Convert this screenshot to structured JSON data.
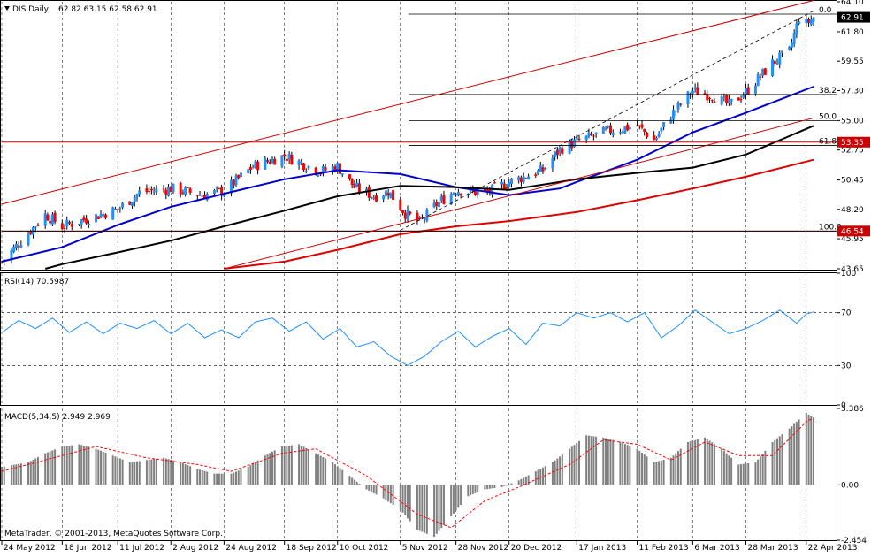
{
  "window": {
    "symbol_header": "DIS,Daily",
    "ohlc": "62.82 63.15 62.58 62.91",
    "copyright": "MetaTrader, © 2001-2013, MetaQuotes Software Corp.",
    "colors": {
      "background": "#ffffff",
      "grid": "#000000",
      "bull": "#1e90ff",
      "bear": "#ff0000",
      "ma_fast": "#0000cd",
      "ma_mid": "#000000",
      "ma_slow": "#dd0000",
      "rsi": "#1e90ff",
      "macd_hist": "#808080",
      "macd_signal": "#ff0000",
      "channel": "#cc0000"
    }
  },
  "chart_data": [
    {
      "type": "candlestick",
      "title": "DIS,Daily",
      "ohlc_label": "62.82 63.15 62.58 62.91",
      "ylim": [
        43.65,
        64.1
      ],
      "y_ticks": [
        "64.10",
        "61.80",
        "59.55",
        "57.30",
        "55.00",
        "52.75",
        "50.45",
        "48.20",
        "45.95",
        "43.65"
      ],
      "x_ticks": [
        "24 May 2012",
        "18 Jun 2012",
        "11 Jul 2012",
        "2 Aug 2012",
        "24 Aug 2012",
        "18 Sep 2012",
        "10 Oct 2012",
        "5 Nov 2012",
        "28 Nov 2012",
        "20 Dec 2012",
        "17 Jan 2013",
        "11 Feb 2013",
        "6 Mar 2013",
        "28 Mar 2013",
        "22 Apr 2013"
      ],
      "price_anchors": [
        [
          "24 May 2012",
          44.2
        ],
        [
          "11 Jun 2012",
          47.8
        ],
        [
          "18 Jun 2012",
          46.9
        ],
        [
          "11 Jul 2012",
          48.2
        ],
        [
          "20 Jul 2012",
          49.5
        ],
        [
          "2 Aug 2012",
          49.8
        ],
        [
          "15 Aug 2012",
          49.3
        ],
        [
          "24 Aug 2012",
          49.6
        ],
        [
          "5 Sep 2012",
          51.5
        ],
        [
          "18 Sep 2012",
          52.3
        ],
        [
          "3 Oct 2012",
          51.1
        ],
        [
          "10 Oct 2012",
          51.5
        ],
        [
          "17 Oct 2012",
          49.9
        ],
        [
          "25 Oct 2012",
          49.2
        ],
        [
          "31 Oct 2012",
          49.6
        ],
        [
          "7 Nov 2012",
          47.9
        ],
        [
          "13 Nov 2012",
          47.2
        ],
        [
          "20 Nov 2012",
          48.6
        ],
        [
          "28 Nov 2012",
          49.7
        ],
        [
          "10 Dec 2012",
          49.4
        ],
        [
          "20 Dec 2012",
          50.3
        ],
        [
          "3 Jan 2013",
          51.2
        ],
        [
          "10 Jan 2013",
          52.8
        ],
        [
          "17 Jan 2013",
          53.4
        ],
        [
          "30 Jan 2013",
          54.2
        ],
        [
          "11 Feb 2013",
          54.6
        ],
        [
          "18 Feb 2013",
          53.5
        ],
        [
          "25 Feb 2013",
          55.4
        ],
        [
          "6 Mar 2013",
          57.3
        ],
        [
          "14 Mar 2013",
          56.9
        ],
        [
          "21 Mar 2013",
          56.2
        ],
        [
          "28 Mar 2013",
          57.2
        ],
        [
          "8 Apr 2013",
          59.4
        ],
        [
          "15 Apr 2013",
          60.3
        ],
        [
          "19 Apr 2013",
          62.9
        ],
        [
          "22 Apr 2013",
          62.4
        ],
        [
          "25 Apr 2013",
          62.9
        ]
      ],
      "moving_averages": [
        {
          "color": "#0000cd",
          "points": [
            [
              "24 May 2012",
              44.2
            ],
            [
              "18 Jun 2012",
              45.3
            ],
            [
              "11 Jul 2012",
              47.0
            ],
            [
              "2 Aug 2012",
              48.4
            ],
            [
              "24 Aug 2012",
              49.4
            ],
            [
              "18 Sep 2012",
              50.5
            ],
            [
              "10 Oct 2012",
              51.2
            ],
            [
              "5 Nov 2012",
              50.9
            ],
            [
              "28 Nov 2012",
              49.9
            ],
            [
              "20 Dec 2012",
              49.3
            ],
            [
              "10 Jan 2013",
              49.8
            ],
            [
              "17 Jan 2013",
              50.3
            ],
            [
              "11 Feb 2013",
              52.0
            ],
            [
              "6 Mar 2013",
              54.1
            ],
            [
              "28 Mar 2013",
              55.6
            ],
            [
              "25 Apr 2013",
              57.6
            ]
          ]
        },
        {
          "color": "#000000",
          "points": [
            [
              "11 Jun 2012",
              43.65
            ],
            [
              "18 Jun 2012",
              44.0
            ],
            [
              "11 Jul 2012",
              44.9
            ],
            [
              "2 Aug 2012",
              45.8
            ],
            [
              "24 Aug 2012",
              46.9
            ],
            [
              "18 Sep 2012",
              48.1
            ],
            [
              "10 Oct 2012",
              49.2
            ],
            [
              "5 Nov 2012",
              50.0
            ],
            [
              "28 Nov 2012",
              49.9
            ],
            [
              "20 Dec 2012",
              49.7
            ],
            [
              "17 Jan 2013",
              50.5
            ],
            [
              "11 Feb 2013",
              51.0
            ],
            [
              "6 Mar 2013",
              51.4
            ],
            [
              "28 Mar 2013",
              52.4
            ],
            [
              "25 Apr 2013",
              54.6
            ]
          ]
        },
        {
          "color": "#dd0000",
          "points": [
            [
              "24 Aug 2012",
              43.65
            ],
            [
              "18 Sep 2012",
              44.2
            ],
            [
              "10 Oct 2012",
              45.1
            ],
            [
              "5 Nov 2012",
              46.3
            ],
            [
              "28 Nov 2012",
              46.9
            ],
            [
              "20 Dec 2012",
              47.3
            ],
            [
              "17 Jan 2013",
              48.0
            ],
            [
              "11 Feb 2013",
              48.9
            ],
            [
              "6 Mar 2013",
              49.8
            ],
            [
              "28 Mar 2013",
              50.7
            ],
            [
              "25 Apr 2013",
              52.0
            ]
          ]
        }
      ],
      "horizontal_levels": [
        {
          "value": 53.35,
          "label": "53.35",
          "color": "#cc0000"
        },
        {
          "value": 46.54,
          "label": "46.54",
          "color": "#cc0000"
        }
      ],
      "fibonacci": [
        {
          "label": "0.0",
          "value": 63.15
        },
        {
          "label": "38.2",
          "value": 57.0
        },
        {
          "label": "50.0",
          "value": 55.0
        },
        {
          "label": "61.8",
          "value": 53.1
        },
        {
          "label": "100.0",
          "value": 46.54
        }
      ],
      "last_price": "62.91",
      "annotations": [
        "0.0",
        "38.2",
        "50.0",
        "61.8",
        "100.0",
        "53.35",
        "46.54"
      ]
    },
    {
      "type": "line",
      "title": "RSI(14) 70.5987",
      "ylim": [
        0,
        100
      ],
      "y_ticks": [
        "100",
        "70",
        "30",
        "0"
      ],
      "levels": [
        70,
        30
      ],
      "series": [
        {
          "values": [
            [
              "24 May 2012",
              55
            ],
            [
              "31 May 2012",
              64
            ],
            [
              "7 Jun 2012",
              58
            ],
            [
              "14 Jun 2012",
              66
            ],
            [
              "21 Jun 2012",
              55
            ],
            [
              "28 Jun 2012",
              63
            ],
            [
              "5 Jul 2012",
              54
            ],
            [
              "12 Jul 2012",
              62
            ],
            [
              "19 Jul 2012",
              58
            ],
            [
              "26 Jul 2012",
              64
            ],
            [
              "2 Aug 2012",
              54
            ],
            [
              "9 Aug 2012",
              62
            ],
            [
              "16 Aug 2012",
              51
            ],
            [
              "23 Aug 2012",
              57
            ],
            [
              "30 Aug 2012",
              51
            ],
            [
              "6 Sep 2012",
              63
            ],
            [
              "13 Sep 2012",
              66
            ],
            [
              "20 Sep 2012",
              56
            ],
            [
              "27 Sep 2012",
              63
            ],
            [
              "4 Oct 2012",
              50
            ],
            [
              "11 Oct 2012",
              58
            ],
            [
              "18 Oct 2012",
              44
            ],
            [
              "25 Oct 2012",
              48
            ],
            [
              "1 Nov 2012",
              37
            ],
            [
              "8 Nov 2012",
              30
            ],
            [
              "15 Nov 2012",
              37
            ],
            [
              "22 Nov 2012",
              48
            ],
            [
              "29 Nov 2012",
              56
            ],
            [
              "6 Dec 2012",
              44
            ],
            [
              "13 Dec 2012",
              52
            ],
            [
              "20 Dec 2012",
              58
            ],
            [
              "27 Dec 2012",
              46
            ],
            [
              "3 Jan 2013",
              62
            ],
            [
              "10 Jan 2013",
              60
            ],
            [
              "17 Jan 2013",
              70
            ],
            [
              "24 Jan 2013",
              66
            ],
            [
              "31 Jan 2013",
              70
            ],
            [
              "7 Feb 2013",
              63
            ],
            [
              "14 Feb 2013",
              70
            ],
            [
              "21 Feb 2013",
              51
            ],
            [
              "28 Feb 2013",
              60
            ],
            [
              "7 Mar 2013",
              72
            ],
            [
              "14 Mar 2013",
              63
            ],
            [
              "21 Mar 2013",
              54
            ],
            [
              "28 Mar 2013",
              58
            ],
            [
              "4 Apr 2013",
              64
            ],
            [
              "11 Apr 2013",
              72
            ],
            [
              "18 Apr 2013",
              62
            ],
            [
              "22 Apr 2013",
              69
            ],
            [
              "25 Apr 2013",
              70.6
            ]
          ]
        }
      ]
    },
    {
      "type": "bar",
      "title": "MACD(5,34,5) 2.949 2.969",
      "ylim": [
        -2.454,
        3.386
      ],
      "y_ticks": [
        "3.386",
        "0.00",
        "-2.454"
      ],
      "histogram": [
        [
          "24 May 2012",
          0.8
        ],
        [
          "4 Jun 2012",
          1.0
        ],
        [
          "11 Jun 2012",
          1.4
        ],
        [
          "18 Jun 2012",
          1.7
        ],
        [
          "25 Jun 2012",
          1.8
        ],
        [
          "2 Jul 2012",
          1.6
        ],
        [
          "9 Jul 2012",
          1.3
        ],
        [
          "16 Jul 2012",
          1.0
        ],
        [
          "23 Jul 2012",
          1.1
        ],
        [
          "30 Jul 2012",
          1.2
        ],
        [
          "6 Aug 2012",
          1.0
        ],
        [
          "13 Aug 2012",
          0.7
        ],
        [
          "20 Aug 2012",
          0.5
        ],
        [
          "27 Aug 2012",
          0.5
        ],
        [
          "3 Sep 2012",
          0.8
        ],
        [
          "10 Sep 2012",
          1.3
        ],
        [
          "17 Sep 2012",
          1.7
        ],
        [
          "24 Sep 2012",
          1.8
        ],
        [
          "1 Oct 2012",
          1.4
        ],
        [
          "8 Oct 2012",
          1.0
        ],
        [
          "15 Oct 2012",
          0.4
        ],
        [
          "22 Oct 2012",
          -0.2
        ],
        [
          "29 Oct 2012",
          -0.6
        ],
        [
          "5 Nov 2012",
          -1.1
        ],
        [
          "12 Nov 2012",
          -2.0
        ],
        [
          "19 Nov 2012",
          -2.3
        ],
        [
          "26 Nov 2012",
          -1.4
        ],
        [
          "3 Dec 2012",
          -0.5
        ],
        [
          "10 Dec 2012",
          -0.2
        ],
        [
          "17 Dec 2012",
          -0.1
        ],
        [
          "24 Dec 2012",
          0.2
        ],
        [
          "31 Dec 2012",
          0.6
        ],
        [
          "7 Jan 2013",
          1.0
        ],
        [
          "14 Jan 2013",
          1.6
        ],
        [
          "21 Jan 2013",
          2.2
        ],
        [
          "28 Jan 2013",
          2.1
        ],
        [
          "4 Feb 2013",
          1.9
        ],
        [
          "11 Feb 2013",
          1.6
        ],
        [
          "18 Feb 2013",
          1.0
        ],
        [
          "25 Feb 2013",
          1.2
        ],
        [
          "4 Mar 2013",
          1.9
        ],
        [
          "11 Mar 2013",
          2.1
        ],
        [
          "18 Mar 2013",
          1.6
        ],
        [
          "25 Mar 2013",
          0.9
        ],
        [
          "1 Apr 2013",
          1.0
        ],
        [
          "8 Apr 2013",
          1.9
        ],
        [
          "15 Apr 2013",
          2.5
        ],
        [
          "22 Apr 2013",
          3.2
        ],
        [
          "25 Apr 2013",
          2.95
        ]
      ],
      "signal": [
        [
          "24 May 2012",
          0.6
        ],
        [
          "18 Jun 2012",
          1.3
        ],
        [
          "2 Jul 2012",
          1.7
        ],
        [
          "23 Jul 2012",
          1.2
        ],
        [
          "13 Aug 2012",
          0.9
        ],
        [
          "27 Aug 2012",
          0.6
        ],
        [
          "17 Sep 2012",
          1.4
        ],
        [
          "1 Oct 2012",
          1.6
        ],
        [
          "22 Oct 2012",
          0.4
        ],
        [
          "12 Nov 2012",
          -1.3
        ],
        [
          "26 Nov 2012",
          -1.9
        ],
        [
          "10 Dec 2012",
          -0.7
        ],
        [
          "24 Dec 2012",
          -0.1
        ],
        [
          "14 Jan 2013",
          0.9
        ],
        [
          "28 Jan 2013",
          2.0
        ],
        [
          "11 Feb 2013",
          1.8
        ],
        [
          "25 Feb 2013",
          1.1
        ],
        [
          "11 Mar 2013",
          1.9
        ],
        [
          "25 Mar 2013",
          1.3
        ],
        [
          "8 Apr 2013",
          1.3
        ],
        [
          "22 Apr 2013",
          2.8
        ],
        [
          "25 Apr 2013",
          2.97
        ]
      ]
    }
  ]
}
